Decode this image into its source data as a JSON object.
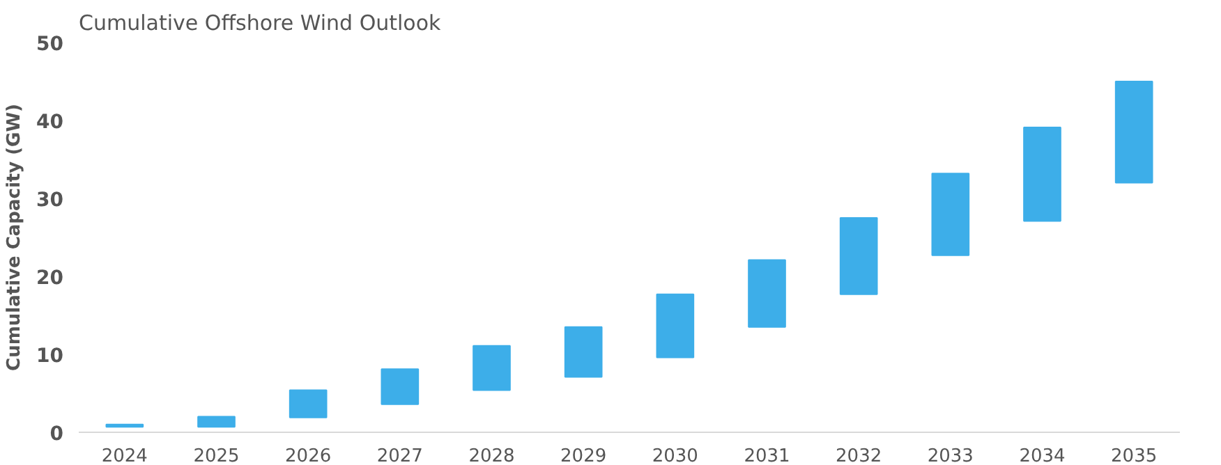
{
  "chart_data": {
    "type": "bar",
    "title": "Cumulative Offshore Wind Outlook",
    "ylabel": "Cumulative Capacity (GW)",
    "categories": [
      "2024",
      "2025",
      "2026",
      "2027",
      "2028",
      "2029",
      "2030",
      "2031",
      "2032",
      "2033",
      "2034",
      "2035"
    ],
    "base": [
      0.7,
      0.7,
      1.9,
      3.6,
      5.4,
      7.1,
      9.6,
      13.5,
      17.7,
      22.7,
      27.1,
      32.0
    ],
    "values": [
      0.3,
      1.3,
      3.5,
      4.5,
      5.7,
      6.4,
      8.1,
      8.6,
      9.8,
      10.5,
      12.0,
      13.0
    ],
    "color": "#3daee9",
    "ylim": [
      0,
      50
    ],
    "yticks": [
      0,
      10,
      20,
      30,
      40,
      50
    ],
    "grid": false
  }
}
